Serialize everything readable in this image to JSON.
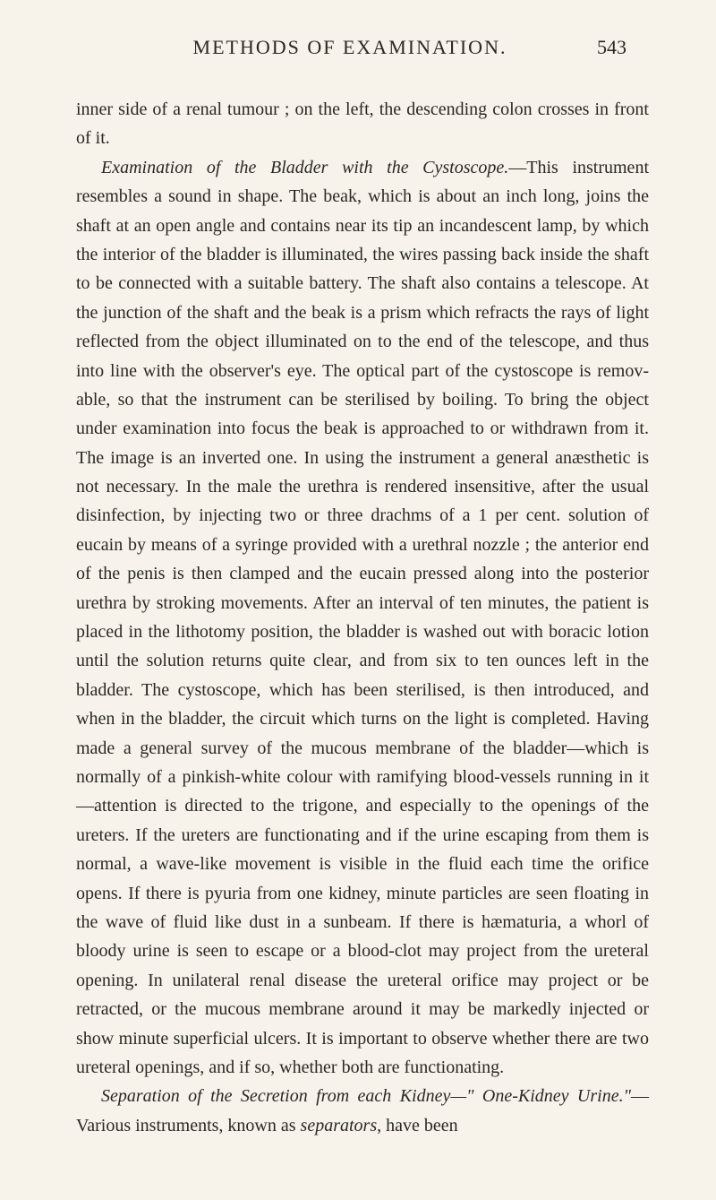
{
  "header": {
    "running_title": "METHODS OF EXAMINATION.",
    "page_number": "543"
  },
  "paragraphs": [
    {
      "segments": [
        {
          "text": "inner side of a renal tumour ; on the left, the descending colon crosses in front of it.",
          "italic": false
        }
      ]
    },
    {
      "segments": [
        {
          "text": "Examination of the Bladder with the Cystoscope.",
          "italic": true
        },
        {
          "text": "—This in­strument resembles a sound in shape. The beak, which is about an inch long, joins the shaft at an open angle and contains near its tip an incandescent lamp, by which the interior of the bladder is illuminated, the wires passing back inside the shaft to be connected with a suitable battery. The shaft also contains a telescope. At the junction of the shaft and the beak is a prism which refracts the rays of light reflected from the object illuminated on to the end of the telescope, and thus into line with the observer's eye. The optical part of the cystoscope is remov­able, so that the instrument can be sterilised by boiling. To bring the object under examination into focus the beak is approached to or withdrawn from it. The image is an inverted one. In using the instrument a general anæsthetic is not necessary. In the male the urethra is rendered insensitive, after the usual disinfection, by injecting two or three drachms of a 1 per cent. solution of eucain by means of a syringe provided with a urethral nozzle ; the anterior end of the penis is then clamped and the eucain pressed along into the posterior urethra by stroking movements. After an interval of ten minutes, the patient is placed in the lithotomy position, the bladder is washed out with boracic lotion until the solution returns quite clear, and from six to ten ounces left in the bladder. The cystoscope, which has been sterilised, is then introduced, and when in the bladder, the circuit which turns on the light is completed. Having made a general survey of the mucous membrane of the bladder—which is normally of a pinkish-white colour with ramifying blood-vessels running in it—attention is directed to the trigone, and especially to the openings of the ureters. If the ureters are functionating and if the urine escaping from them is normal, a wave-like movement is visible in the fluid each time the orifice opens. If there is pyuria from one kidney, minute particles are seen floating in the wave of fluid like dust in a sunbeam. If there is hæmaturia, a whorl of bloody urine is seen to escape or a blood-clot may project from the ureteral opening. In unilateral renal disease the ureteral orifice may project or be retracted, or the mucous membrane around it may be markedly injected or show minute superficial ulcers. It is important to observe whether there are two ureteral openings, and if so, whether both are functionating.",
          "italic": false
        }
      ]
    },
    {
      "segments": [
        {
          "text": "Separation of the Secretion from each Kidney—\" One-Kidney Urine.\"",
          "italic": true
        },
        {
          "text": "—Various instruments, known as ",
          "italic": false
        },
        {
          "text": "separators",
          "italic": true
        },
        {
          "text": ", have been",
          "italic": false
        }
      ]
    }
  ],
  "style": {
    "background_color": "#f7f3ea",
    "text_color": "#2a2824",
    "body_font_size": 20,
    "header_font_size": 22,
    "line_height": 1.62
  }
}
